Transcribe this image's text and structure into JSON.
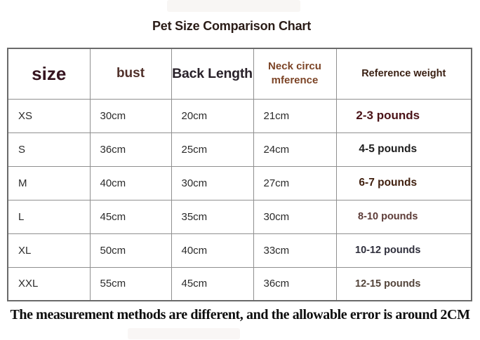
{
  "title": "Pet Size Comparison Chart",
  "note": "The measurement methods are different, and the allowable error is around 2CM",
  "table": {
    "columns": [
      {
        "key": "size",
        "label": "size"
      },
      {
        "key": "bust",
        "label": "bust"
      },
      {
        "key": "back_length",
        "label": "Back Length"
      },
      {
        "key": "neck_circumference",
        "label": "Neck circu\nmference"
      },
      {
        "key": "reference_weight",
        "label": "Reference weight"
      }
    ],
    "rows": [
      {
        "size": "XS",
        "bust": "30cm",
        "back_length": "20cm",
        "neck_circumference": "21cm",
        "reference_weight": "2-3 pounds"
      },
      {
        "size": "S",
        "bust": "36cm",
        "back_length": "25cm",
        "neck_circumference": "24cm",
        "reference_weight": "4-5 pounds"
      },
      {
        "size": "M",
        "bust": "40cm",
        "back_length": "30cm",
        "neck_circumference": "27cm",
        "reference_weight": "6-7 pounds"
      },
      {
        "size": "L",
        "bust": "45cm",
        "back_length": "35cm",
        "neck_circumference": "30cm",
        "reference_weight": "8-10 pounds"
      },
      {
        "size": "XL",
        "bust": "50cm",
        "back_length": "40cm",
        "neck_circumference": "33cm",
        "reference_weight": "10-12 pounds"
      },
      {
        "size": "XXL",
        "bust": "55cm",
        "back_length": "45cm",
        "neck_circumference": "36cm",
        "reference_weight": "12-15 pounds"
      }
    ]
  },
  "colors": {
    "emphasis_maroon": "#4a1217",
    "header_brown": "#7c4426",
    "header_dark": "#29222a",
    "table_border": "#8f8f8f",
    "note_text": "#0e0e0e"
  }
}
